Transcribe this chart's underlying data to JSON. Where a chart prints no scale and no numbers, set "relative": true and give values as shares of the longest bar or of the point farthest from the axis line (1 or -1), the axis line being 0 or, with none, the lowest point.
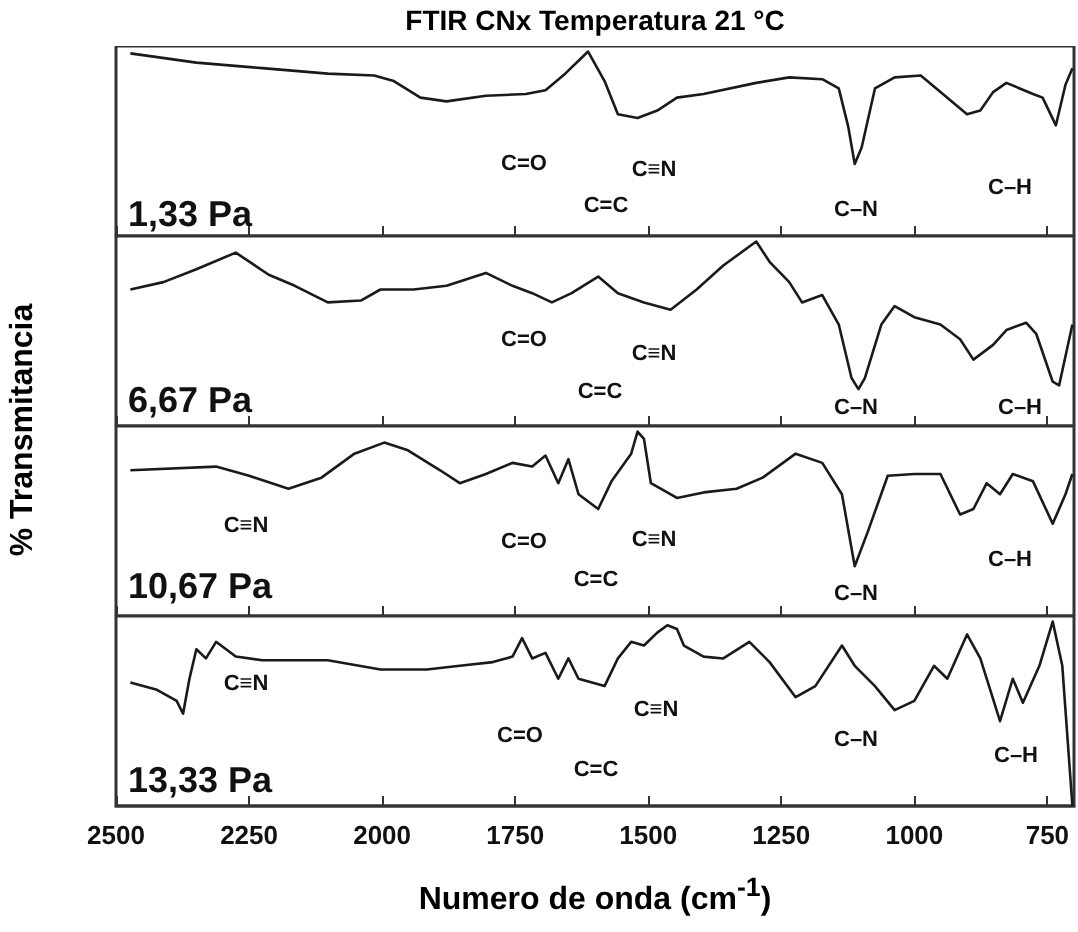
{
  "chart_data": [
    {
      "type": "line",
      "title": "FTIR CNx Temperatura 21 °C",
      "ylabel": "% Transmitancia",
      "relative": true,
      "xlim": [
        2500,
        700
      ],
      "xticks": [
        2500,
        2250,
        2000,
        1750,
        1500,
        1250,
        1000,
        750
      ],
      "tick_labels": false,
      "grid": false,
      "marker": "none",
      "line_style": "solid",
      "x": [
        2473,
        2349,
        2225,
        2102,
        2015,
        1978,
        1928,
        1879,
        1805,
        1730,
        1693,
        1656,
        1613,
        1582,
        1557,
        1520,
        1483,
        1446,
        1396,
        1297,
        1235,
        1173,
        1142,
        1124,
        1112,
        1099,
        1074,
        1037,
        988,
        938,
        901,
        876,
        852,
        827,
        802,
        777,
        759,
        734,
        716,
        703
      ],
      "series": [
        {
          "color": "#1a1a1a",
          "values": [
            0.99,
            0.94,
            0.91,
            0.88,
            0.87,
            0.84,
            0.75,
            0.73,
            0.76,
            0.77,
            0.79,
            0.88,
            1,
            0.84,
            0.66,
            0.64,
            0.68,
            0.75,
            0.77,
            0.83,
            0.86,
            0.85,
            0.8,
            0.59,
            0.39,
            0.48,
            0.8,
            0.86,
            0.87,
            0.75,
            0.66,
            0.68,
            0.78,
            0.83,
            0.8,
            0.77,
            0.75,
            0.6,
            0.82,
            0.91
          ]
        }
      ],
      "annotations": [
        "1,33 Pa",
        "C=O",
        "C≡N",
        "C=C",
        "C–N",
        "C–H"
      ]
    },
    {
      "type": "line",
      "relative": true,
      "xlim": [
        2500,
        700
      ],
      "xticks": [
        2500,
        2250,
        2000,
        1750,
        1500,
        1250,
        1000,
        750
      ],
      "tick_labels": false,
      "grid": false,
      "marker": "none",
      "line_style": "solid",
      "x": [
        2473,
        2411,
        2349,
        2275,
        2213,
        2164,
        2102,
        2040,
        2003,
        1941,
        1879,
        1805,
        1755,
        1718,
        1681,
        1644,
        1594,
        1557,
        1508,
        1458,
        1409,
        1359,
        1297,
        1272,
        1235,
        1211,
        1173,
        1142,
        1118,
        1105,
        1093,
        1062,
        1037,
        1000,
        951,
        914,
        889,
        852,
        827,
        790,
        771,
        740,
        728,
        703
      ],
      "series": [
        {
          "color": "#1a1a1a",
          "values": [
            0.74,
            0.78,
            0.85,
            0.94,
            0.82,
            0.76,
            0.67,
            0.68,
            0.74,
            0.74,
            0.76,
            0.83,
            0.76,
            0.72,
            0.67,
            0.72,
            0.81,
            0.72,
            0.67,
            0.63,
            0.74,
            0.87,
            1,
            0.89,
            0.78,
            0.67,
            0.71,
            0.55,
            0.26,
            0.2,
            0.26,
            0.55,
            0.65,
            0.59,
            0.55,
            0.47,
            0.36,
            0.44,
            0.52,
            0.56,
            0.5,
            0.24,
            0.22,
            0.55
          ]
        }
      ],
      "annotations": [
        "6,67 Pa",
        "C=O",
        "C≡N",
        "C=C",
        "C–N",
        "C–H"
      ]
    },
    {
      "type": "line",
      "relative": true,
      "xlim": [
        2500,
        700
      ],
      "xticks": [
        2500,
        2250,
        2000,
        1750,
        1500,
        1250,
        1000,
        750
      ],
      "tick_labels": false,
      "grid": false,
      "marker": "none",
      "line_style": "solid",
      "x": [
        2473,
        2312,
        2250,
        2176,
        2114,
        2052,
        1996,
        1953,
        1891,
        1854,
        1805,
        1755,
        1718,
        1693,
        1669,
        1650,
        1631,
        1594,
        1569,
        1532,
        1520,
        1508,
        1495,
        1446,
        1396,
        1334,
        1285,
        1223,
        1173,
        1136,
        1112,
        1087,
        1050,
        1000,
        951,
        914,
        889,
        864,
        839,
        815,
        777,
        740,
        716,
        703
      ],
      "series": [
        {
          "color": "#1a1a1a",
          "values": [
            0.79,
            0.81,
            0.76,
            0.69,
            0.75,
            0.88,
            0.94,
            0.9,
            0.79,
            0.72,
            0.77,
            0.83,
            0.81,
            0.87,
            0.72,
            0.85,
            0.66,
            0.58,
            0.73,
            0.88,
            1,
            0.96,
            0.72,
            0.64,
            0.67,
            0.69,
            0.75,
            0.88,
            0.83,
            0.66,
            0.27,
            0.46,
            0.76,
            0.77,
            0.77,
            0.55,
            0.58,
            0.72,
            0.66,
            0.77,
            0.73,
            0.5,
            0.66,
            0.77
          ]
        }
      ],
      "annotations": [
        "10,67 Pa",
        "C≡N",
        "C=O",
        "C≡N",
        "C=C",
        "C–N",
        "C–H"
      ]
    },
    {
      "type": "line",
      "xlabel": "Numero de onda (cm$^{-1}$)",
      "relative": true,
      "xlim": [
        2500,
        700
      ],
      "xticks": [
        2500,
        2250,
        2000,
        1750,
        1500,
        1250,
        1000,
        750
      ],
      "tick_labels": "x",
      "grid": false,
      "marker": "none",
      "line_style": "solid",
      "x": [
        2473,
        2423,
        2386,
        2374,
        2362,
        2349,
        2331,
        2312,
        2275,
        2225,
        2102,
        2003,
        1916,
        1854,
        1792,
        1755,
        1737,
        1718,
        1693,
        1669,
        1650,
        1631,
        1582,
        1557,
        1532,
        1508,
        1483,
        1464,
        1446,
        1433,
        1396,
        1359,
        1310,
        1272,
        1223,
        1186,
        1136,
        1112,
        1074,
        1037,
        1000,
        963,
        938,
        901,
        876,
        839,
        815,
        796,
        765,
        740,
        722,
        703
      ],
      "series": [
        {
          "color": "#1a1a1a",
          "values": [
            0.67,
            0.63,
            0.57,
            0.5,
            0.69,
            0.85,
            0.8,
            0.89,
            0.81,
            0.79,
            0.79,
            0.74,
            0.74,
            0.76,
            0.78,
            0.81,
            0.91,
            0.8,
            0.83,
            0.69,
            0.8,
            0.69,
            0.65,
            0.8,
            0.89,
            0.87,
            0.94,
            0.98,
            0.96,
            0.87,
            0.81,
            0.8,
            0.89,
            0.78,
            0.59,
            0.65,
            0.87,
            0.76,
            0.65,
            0.52,
            0.57,
            0.76,
            0.69,
            0.93,
            0.8,
            0.46,
            0.69,
            0.56,
            0.76,
            1,
            0.76,
            0
          ]
        }
      ],
      "annotations": [
        "13,33 Pa",
        "C≡N",
        "C=O",
        "C≡N",
        "C=C",
        "C–N",
        "C–H"
      ]
    }
  ]
}
